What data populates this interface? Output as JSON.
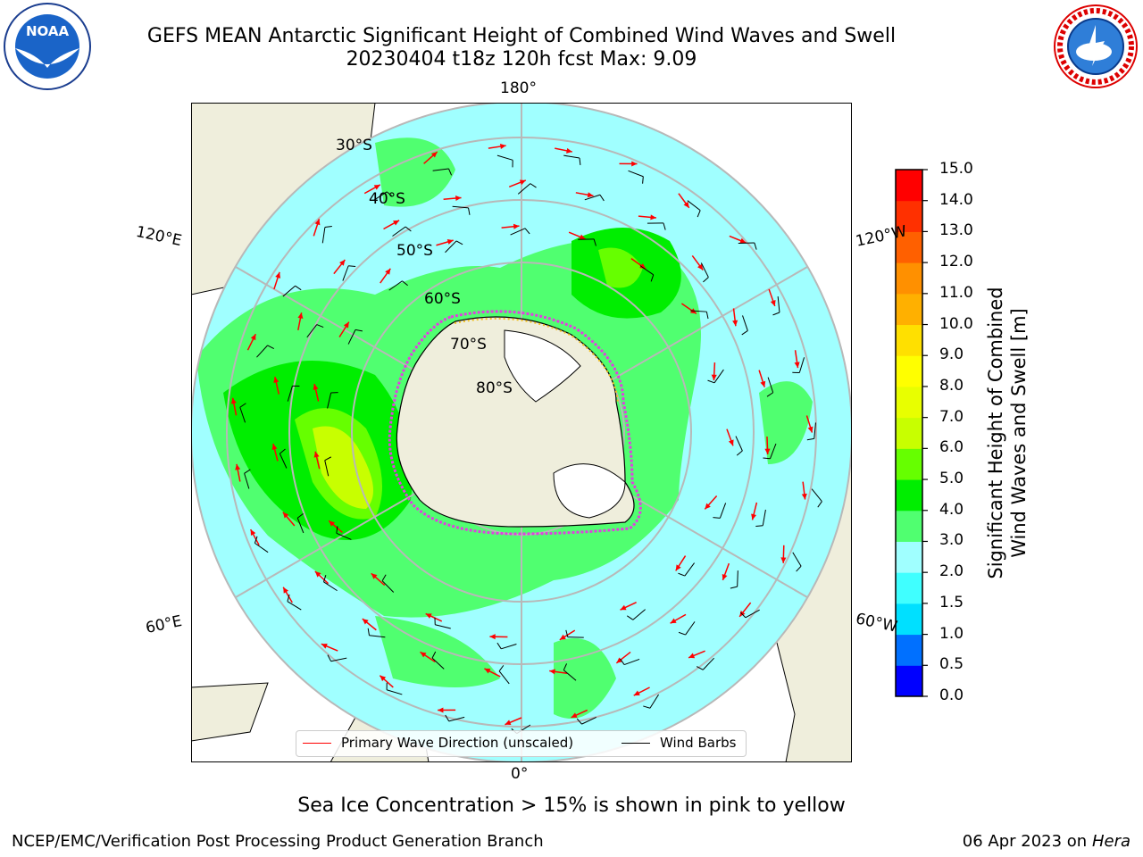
{
  "header": {
    "title_line1": "GEFS MEAN Antarctic Significant Height of Combined Wind Waves and Swell",
    "title_line2": "20230404 t18z 120h fcst   Max: 9.09"
  },
  "logos": {
    "noaa_text": "NOAA",
    "nws_text": "NATIONAL WEATHER SERVICE"
  },
  "map": {
    "longitude_labels": {
      "top": "180°",
      "bottom": "0°",
      "upper_left": "120°E",
      "upper_right": "120°W",
      "lower_left": "60°E",
      "lower_right": "60°W"
    },
    "latitude_labels": [
      "30°S",
      "40°S",
      "50°S",
      "60°S",
      "70°S",
      "80°S"
    ],
    "colors": {
      "land": "#efeedc",
      "ice_shelf": "#ffffff",
      "sea_ice_edge": "#e040e0",
      "graticule": "#b8b8b8",
      "wave_arrow": "#ff0000",
      "wind_barb": "#000000"
    }
  },
  "colorbar": {
    "title_line1": "Significant Height of Combined",
    "title_line2": "Wind Waves and Swell [m]",
    "ticks": [
      "15.0",
      "14.0",
      "13.0",
      "12.0",
      "11.0",
      "10.0",
      "9.0",
      "8.0",
      "7.0",
      "6.0",
      "5.0",
      "4.0",
      "3.0",
      "2.0",
      "1.5",
      "1.0",
      "0.5",
      "0.0"
    ],
    "colors_bottom_to_top": [
      "#0000ff",
      "#0070ff",
      "#00e0ff",
      "#40ffff",
      "#a0ffff",
      "#50ff70",
      "#00ee00",
      "#66ff00",
      "#c8ff00",
      "#e8ff00",
      "#ffff00",
      "#ffe000",
      "#ffb000",
      "#ff9000",
      "#ff6000",
      "#ff3000",
      "#ff0000"
    ]
  },
  "legend": {
    "wave_label": "Primary Wave Direction (unscaled)",
    "wind_label": "Wind Barbs"
  },
  "footer": {
    "note": "Sea Ice Concentration > 15% is shown in pink to yellow",
    "left": "NCEP/EMC/Verification Post Processing Product Generation Branch",
    "right_date": "06 Apr 2023 on ",
    "right_host": "Hera"
  }
}
